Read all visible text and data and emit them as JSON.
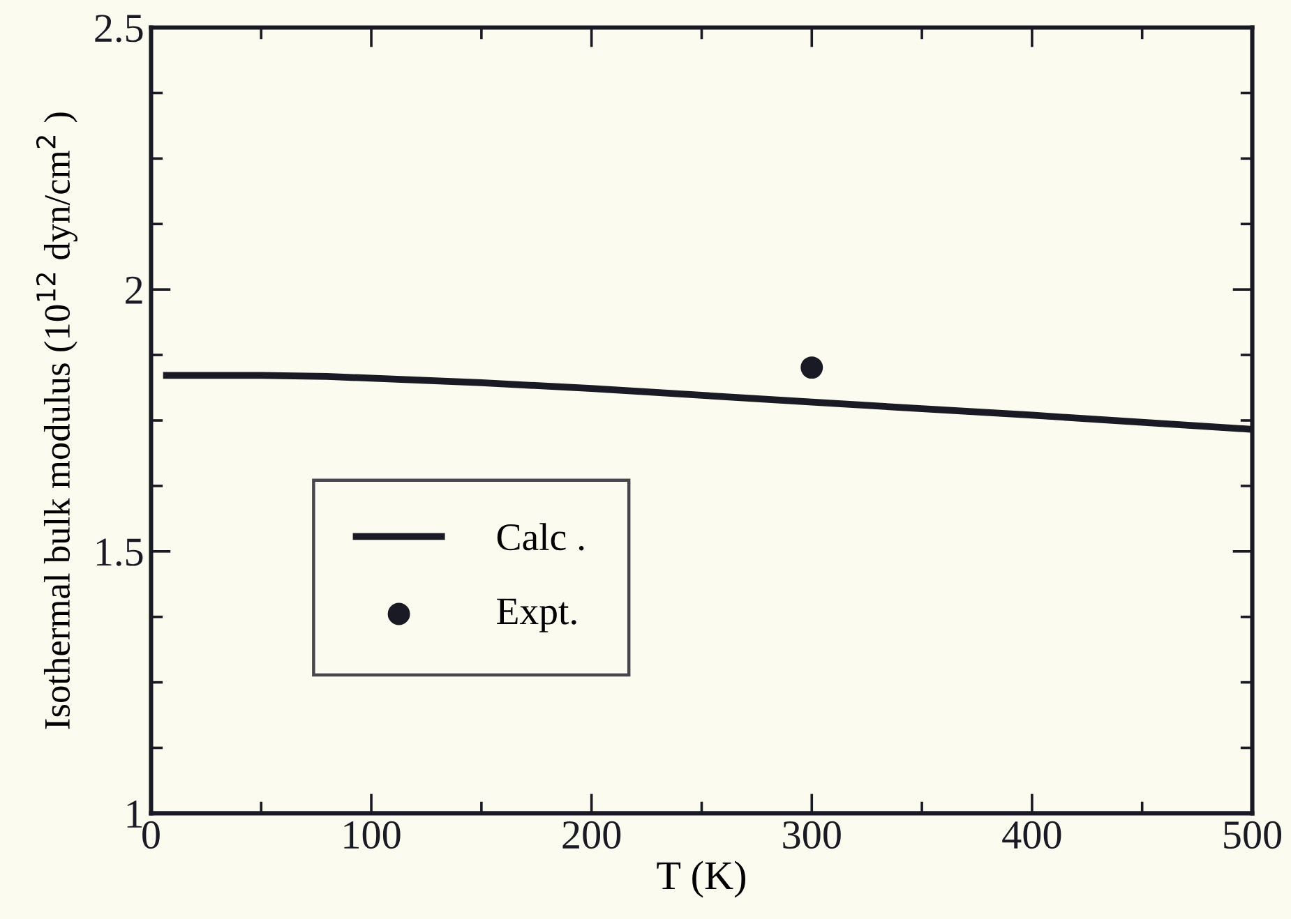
{
  "chart_data": {
    "type": "line",
    "xlabel": "T (K)",
    "ylabel": "Isothermal bulk modulus (10$^{12}$ dyn/cm$^{2}$ )",
    "xlim": [
      0,
      500
    ],
    "ylim": [
      1,
      2.5
    ],
    "xticks": [
      0,
      {
        "value": 50,
        "label": null
      },
      100,
      {
        "value": 150,
        "label": null
      },
      200,
      {
        "value": 250,
        "label": null
      },
      300,
      {
        "value": 350,
        "label": null
      },
      400,
      {
        "value": 450,
        "label": null
      },
      500
    ],
    "yticks": [
      1,
      {
        "value": 1.125,
        "label": null
      },
      {
        "value": 1.25,
        "label": null
      },
      {
        "value": 1.375,
        "label": null
      },
      1.5,
      {
        "value": 1.625,
        "label": null
      },
      {
        "value": 1.75,
        "label": null
      },
      {
        "value": 1.875,
        "label": null
      },
      2,
      {
        "value": 2.125,
        "label": null
      },
      {
        "value": 2.25,
        "label": null
      },
      {
        "value": 2.375,
        "label": null
      },
      2.5
    ],
    "grid": false,
    "legend": "center left",
    "series": [
      {
        "name": "Calc .",
        "color": "#1a1a24",
        "marker": "none",
        "line_style": "solid",
        "x": [
          7,
          50,
          80,
          150,
          200,
          300,
          400,
          500
        ],
        "values": [
          1.836,
          1.836,
          1.834,
          1.822,
          1.811,
          1.785,
          1.76,
          1.733
        ]
      },
      {
        "name": "Expt.",
        "type": "scatter",
        "color": "#1a1a24",
        "marker": "circle",
        "x": [
          300
        ],
        "values": [
          1.851
        ]
      }
    ]
  }
}
